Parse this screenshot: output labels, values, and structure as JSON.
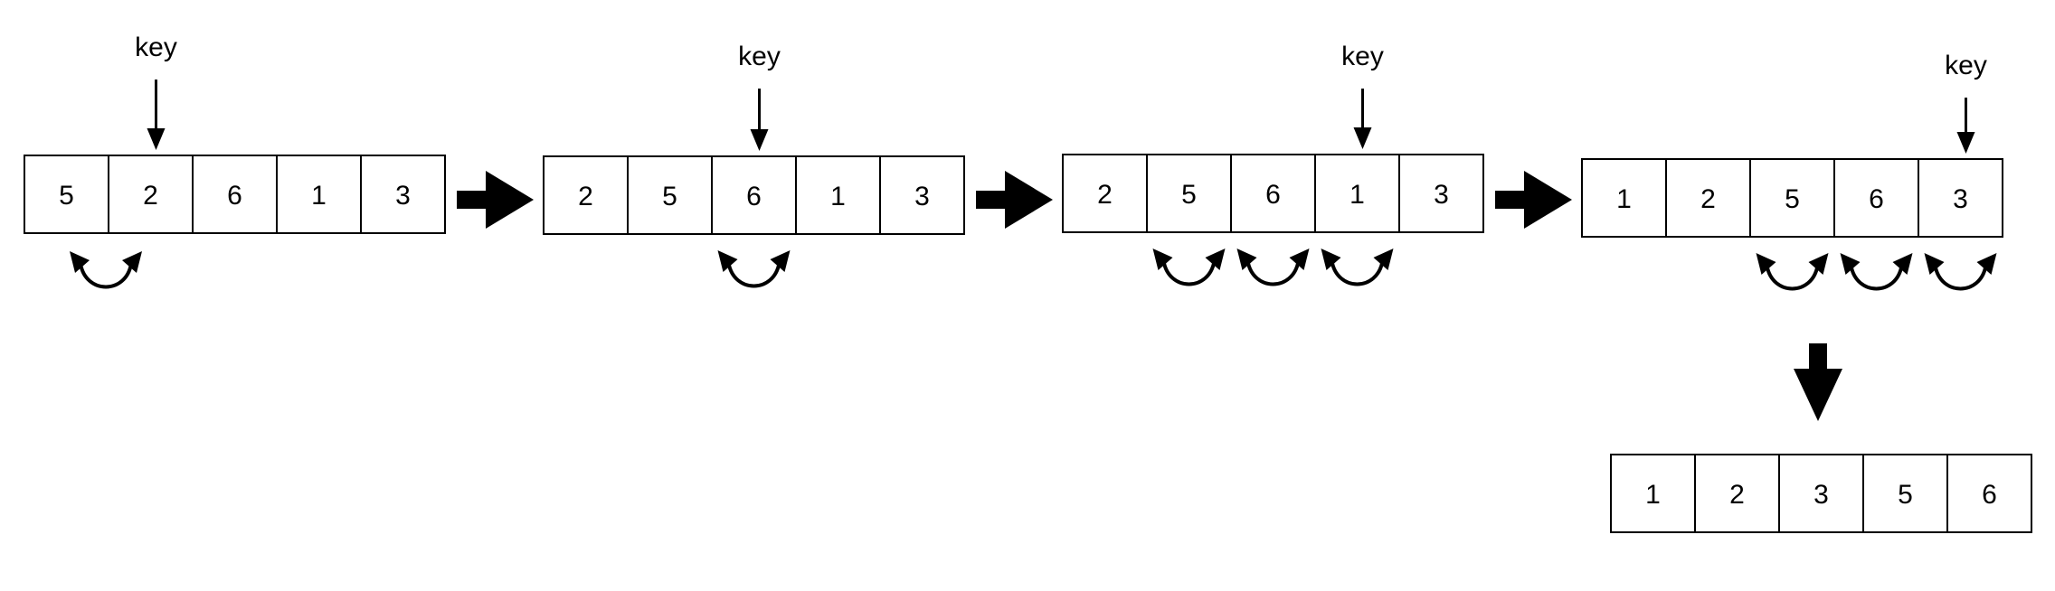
{
  "key_label": "key",
  "steps": [
    {
      "cells": [
        "5",
        "2",
        "6",
        "1",
        "3"
      ],
      "key_index": 1,
      "swaps": [
        0
      ]
    },
    {
      "cells": [
        "2",
        "5",
        "6",
        "1",
        "3"
      ],
      "key_index": 2,
      "swaps": [
        1.5
      ]
    },
    {
      "cells": [
        "2",
        "5",
        "6",
        "1",
        "3"
      ],
      "key_index": 3,
      "swaps": [
        0.5,
        1.5,
        2.5
      ]
    },
    {
      "cells": [
        "1",
        "2",
        "5",
        "6",
        "3"
      ],
      "key_index": 4,
      "swaps": [
        1.5,
        2.5,
        3.5
      ]
    }
  ],
  "result": {
    "cells": [
      "1",
      "2",
      "3",
      "5",
      "6"
    ]
  }
}
